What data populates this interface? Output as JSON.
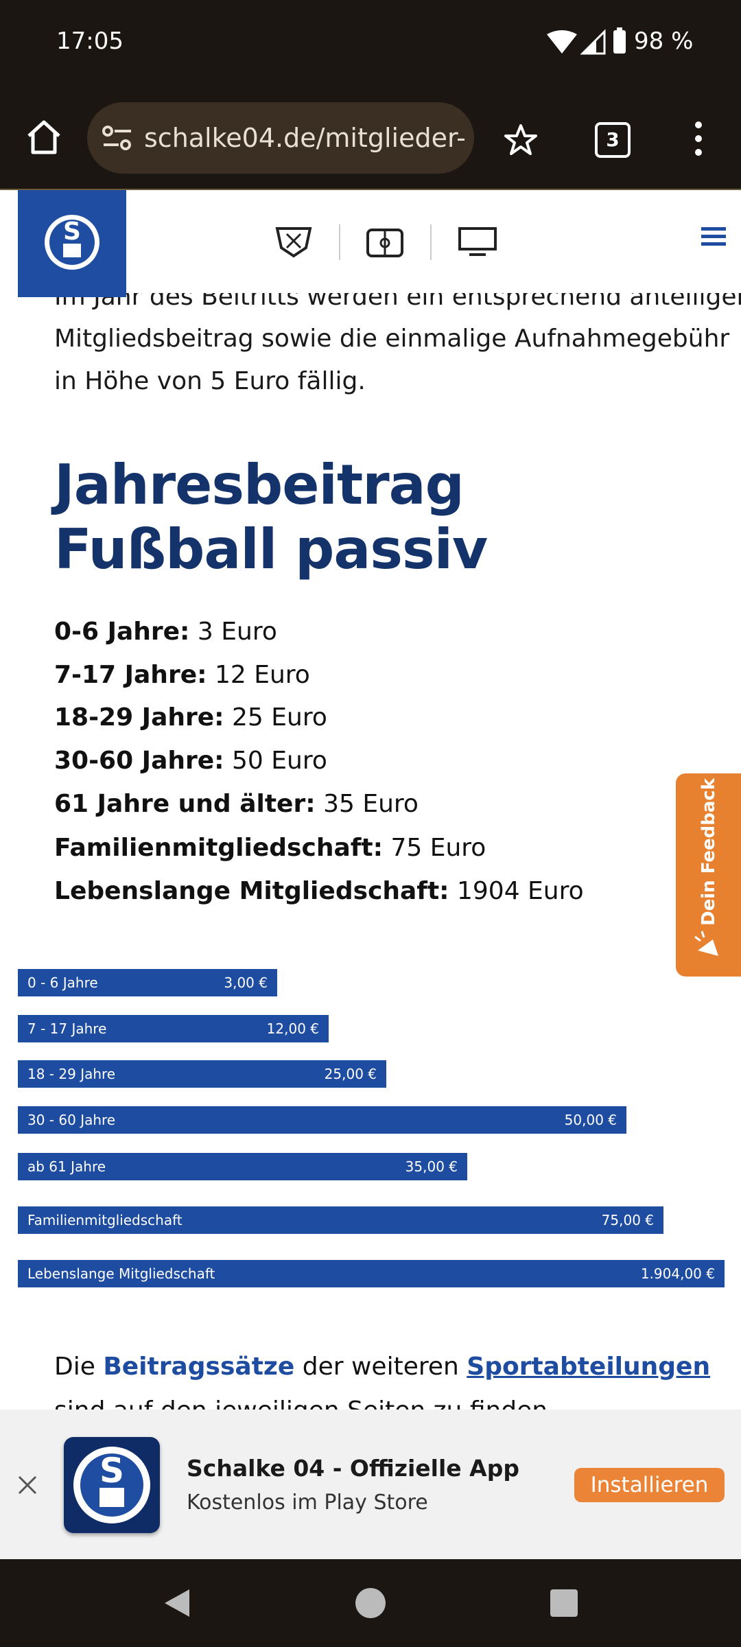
{
  "status_bar": {
    "time": "17:05",
    "battery": "98 %"
  },
  "browser": {
    "url": "schalke04.de/mitglieder-",
    "tab_count": "3"
  },
  "article": {
    "intro_lines": [
      "Im Jahr des Beitritts werden ein entsprechend anteiliger",
      "Mitgliedsbeitrag sowie die einmalige Aufnahmegebühr",
      "in Höhe von 5 Euro fällig."
    ],
    "heading": "Jahresbeitrag Fußball passiv",
    "fees": [
      {
        "label": "0-6 Jahre:",
        "value": "3 Euro"
      },
      {
        "label": "7-17 Jahre:",
        "value": "12 Euro"
      },
      {
        "label": "18-29 Jahre:",
        "value": "25 Euro"
      },
      {
        "label": "30-60 Jahre:",
        "value": "50 Euro"
      },
      {
        "label": "61 Jahre und älter:",
        "value": "35 Euro"
      },
      {
        "label": "Familienmitgliedschaft:",
        "value": "75 Euro"
      },
      {
        "label": "Lebenslange Mitgliedschaft:",
        "value": "1904 Euro"
      }
    ],
    "bars": [
      {
        "label": "0 - 6 Jahre",
        "value": "3,00 €"
      },
      {
        "label": "7 - 17 Jahre",
        "value": "12,00 €"
      },
      {
        "label": "18 - 29 Jahre",
        "value": "25,00 €"
      },
      {
        "label": "30 - 60 Jahre",
        "value": "50,00 €"
      },
      {
        "label": "ab 61 Jahre",
        "value": "35,00 €"
      },
      {
        "label": "Familienmitgliedschaft",
        "value": "75,00 €"
      },
      {
        "label": "Lebenslange Mitgliedschaft",
        "value": "1.904,00 €"
      }
    ],
    "outro": {
      "start": "Die",
      "link1": "Beitragssätze",
      "middle": "der weiteren",
      "link2": "Sportabteilungen",
      "end": "sind auf den jeweiligen Seiten zu finden."
    }
  },
  "feedback": "Dein Feedback",
  "app_banner": {
    "title": "Schalke 04 - Offizielle App",
    "subtitle": "Kostenlos im Play Store",
    "button": "Installieren"
  }
}
